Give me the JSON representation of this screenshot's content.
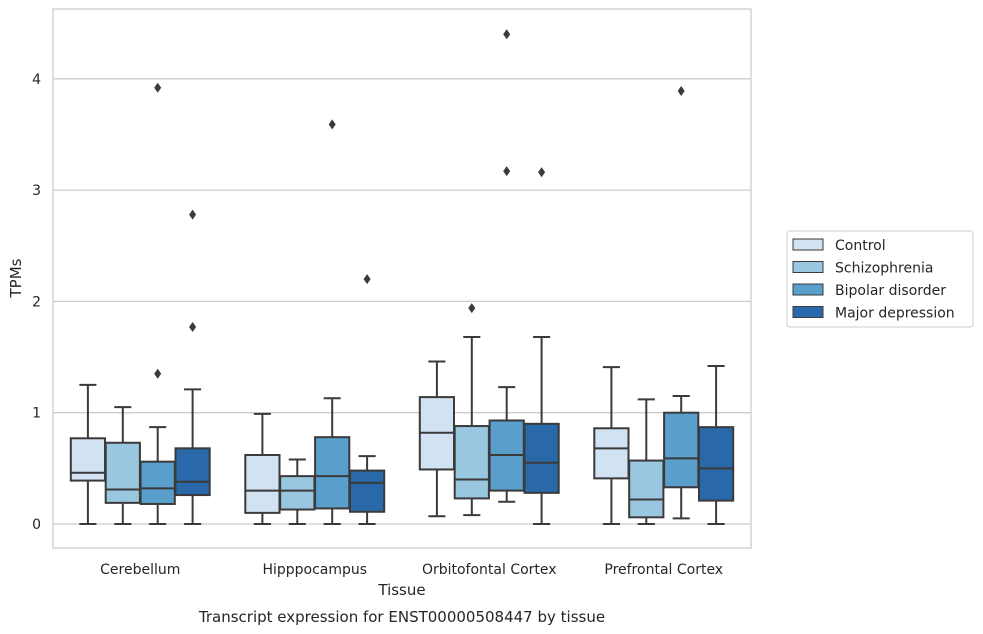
{
  "chart_data": {
    "type": "box",
    "caption": "Transcript expression for ENST00000508447 by tissue",
    "xlabel": "Tissue",
    "ylabel": "TPMs",
    "categories": [
      "Cerebellum",
      "Hipppocampus",
      "Orbitofontal Cortex",
      "Prefrontal Cortex"
    ],
    "ylim": [
      -0.2,
      4.62
    ],
    "yticks": [
      0,
      1,
      2,
      3,
      4
    ],
    "grid": "horizontal",
    "legend_position": "right",
    "series": [
      {
        "name": "Control",
        "color": "#d1e2f2",
        "boxes": [
          {
            "min": 0.0,
            "q1": 0.39,
            "median": 0.46,
            "q3": 0.77,
            "max": 1.25,
            "outliers": []
          },
          {
            "min": 0.0,
            "q1": 0.1,
            "median": 0.3,
            "q3": 0.62,
            "max": 0.99,
            "outliers": []
          },
          {
            "min": 0.07,
            "q1": 0.49,
            "median": 0.82,
            "q3": 1.14,
            "max": 1.46,
            "outliers": []
          },
          {
            "min": 0.0,
            "q1": 0.41,
            "median": 0.68,
            "q3": 0.86,
            "max": 1.41,
            "outliers": []
          }
        ]
      },
      {
        "name": "Schizophrenia",
        "color": "#9ac7e0",
        "boxes": [
          {
            "min": 0.0,
            "q1": 0.19,
            "median": 0.31,
            "q3": 0.73,
            "max": 1.05,
            "outliers": []
          },
          {
            "min": 0.0,
            "q1": 0.13,
            "median": 0.3,
            "q3": 0.43,
            "max": 0.58,
            "outliers": []
          },
          {
            "min": 0.08,
            "q1": 0.23,
            "median": 0.4,
            "q3": 0.88,
            "max": 1.68,
            "outliers": [
              1.94
            ]
          },
          {
            "min": 0.0,
            "q1": 0.06,
            "median": 0.22,
            "q3": 0.57,
            "max": 1.12,
            "outliers": []
          }
        ]
      },
      {
        "name": "Bipolar disorder",
        "color": "#5a9ecb",
        "boxes": [
          {
            "min": 0.0,
            "q1": 0.18,
            "median": 0.32,
            "q3": 0.56,
            "max": 0.87,
            "outliers": [
              1.35,
              3.92
            ]
          },
          {
            "min": 0.0,
            "q1": 0.14,
            "median": 0.43,
            "q3": 0.78,
            "max": 1.13,
            "outliers": [
              3.59
            ]
          },
          {
            "min": 0.2,
            "q1": 0.3,
            "median": 0.62,
            "q3": 0.93,
            "max": 1.23,
            "outliers": [
              3.17,
              4.4
            ]
          },
          {
            "min": 0.05,
            "q1": 0.33,
            "median": 0.59,
            "q3": 1.0,
            "max": 1.15,
            "outliers": [
              3.89
            ]
          }
        ]
      },
      {
        "name": "Major depression",
        "color": "#2a69a9",
        "boxes": [
          {
            "min": 0.0,
            "q1": 0.26,
            "median": 0.38,
            "q3": 0.68,
            "max": 1.21,
            "outliers": [
              1.77,
              2.78
            ]
          },
          {
            "min": 0.0,
            "q1": 0.11,
            "median": 0.37,
            "q3": 0.48,
            "max": 0.61,
            "outliers": [
              2.2
            ]
          },
          {
            "min": 0.0,
            "q1": 0.28,
            "median": 0.55,
            "q3": 0.9,
            "max": 1.68,
            "outliers": [
              3.16
            ]
          },
          {
            "min": 0.0,
            "q1": 0.21,
            "median": 0.5,
            "q3": 0.87,
            "max": 1.42,
            "outliers": []
          }
        ]
      }
    ]
  }
}
